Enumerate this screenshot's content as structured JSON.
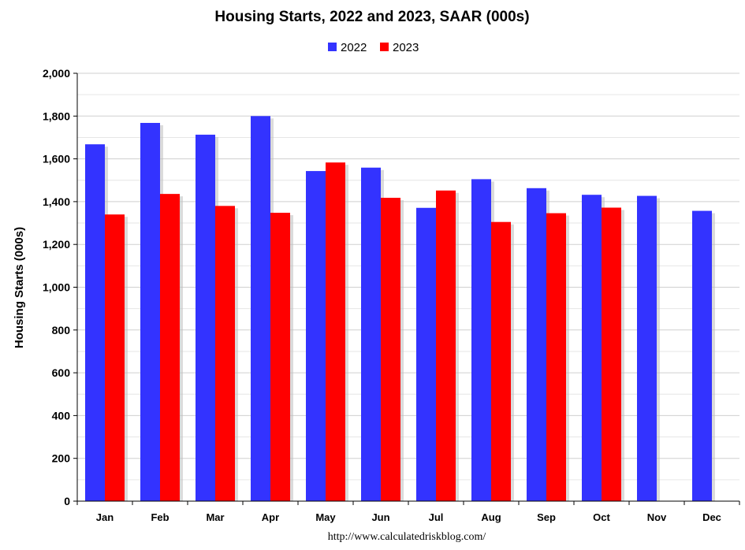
{
  "chart_data": {
    "type": "bar",
    "title": "Housing Starts,  2022 and 2023, SAAR (000s)",
    "ylabel": "Housing Starts (000s)",
    "xlabel": "",
    "categories": [
      "Jan",
      "Feb",
      "Mar",
      "Apr",
      "May",
      "Jun",
      "Jul",
      "Aug",
      "Sep",
      "Oct",
      "Nov",
      "Dec"
    ],
    "ylim": [
      0,
      2000
    ],
    "yticks": [
      0,
      200,
      400,
      600,
      800,
      1000,
      1200,
      1400,
      1600,
      1800,
      2000
    ],
    "ytick_labels": [
      "0",
      "200",
      "400",
      "600",
      "800",
      "1,000",
      "1,200",
      "1,400",
      "1,600",
      "1,800",
      "2,000"
    ],
    "grid": true,
    "legend_position": "top-center",
    "series": [
      {
        "name": "2022",
        "color": "#3333ff",
        "values": [
          1668,
          1768,
          1713,
          1800,
          1543,
          1559,
          1371,
          1505,
          1463,
          1432,
          1427,
          1357
        ]
      },
      {
        "name": "2023",
        "color": "#ff0000",
        "values": [
          1340,
          1436,
          1380,
          1348,
          1583,
          1418,
          1452,
          1305,
          1346,
          1372,
          null,
          null
        ]
      }
    ],
    "source": "http://www.calculatedriskblog.com/"
  }
}
